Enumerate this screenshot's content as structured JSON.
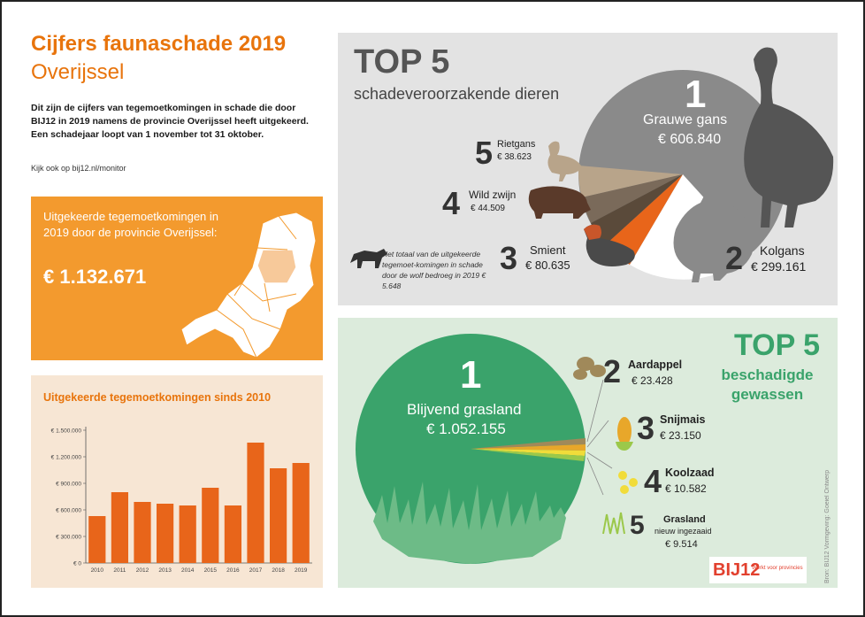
{
  "header": {
    "title": "Cijfers faunaschade 2019",
    "subtitle": "Overijssel",
    "intro": "Dit zijn de cijfers van tegemoetkomingen in schade die door BIJ12 in 2019 namens de provincie Overijssel heeft uitgekeerd. Een schadejaar loopt van 1 november tot 31 oktober.",
    "see_also": "Kijk ook op bij12.nl/monitor"
  },
  "province_box": {
    "label": "Uitgekeerde tegemoetkomingen in 2019 door de provincie Overijssel:",
    "amount": "€ 1.132.671"
  },
  "chart": {
    "title": "Uitgekeerde tegemoetkomingen sinds 2010"
  },
  "chart_data": {
    "type": "bar",
    "title": "Uitgekeerde tegemoetkomingen sinds 2010",
    "categories": [
      "2010",
      "2011",
      "2012",
      "2013",
      "2014",
      "2015",
      "2016",
      "2017",
      "2018",
      "2019"
    ],
    "values": [
      530000,
      800000,
      690000,
      670000,
      650000,
      850000,
      650000,
      1360000,
      1070000,
      1130000
    ],
    "ytick_labels": [
      "€ 0",
      "€ 300.000",
      "€ 600.000",
      "€ 900.000",
      "€ 1.200.000",
      "€ 1.500.000"
    ],
    "ylim": [
      0,
      1500000
    ],
    "color": "#e8651a",
    "grid": false
  },
  "animals": {
    "heading": "TOP 5",
    "subheading": "schadeveroorzakende dieren",
    "items": [
      {
        "rank": "1",
        "name": "Grauwe gans",
        "value": "€ 606.840"
      },
      {
        "rank": "2",
        "name": "Kolgans",
        "value": "€ 299.161"
      },
      {
        "rank": "3",
        "name": "Smient",
        "value": "€ 80.635"
      },
      {
        "rank": "4",
        "name": "Wild zwijn",
        "value": "€ 44.509"
      },
      {
        "rank": "5",
        "name": "Rietgans",
        "value": "€ 38.623"
      }
    ],
    "wolf_note": "Het totaal van de uitgekeerde tegemoet-komingen in schade door de wolf bedroeg in 2019 € 5.648",
    "colors": {
      "grauwe_gans": "#8a8a8a",
      "kolgans": "#ffffff",
      "smient": "#e8651a",
      "wild_zwijn": "#7a6a5a",
      "rietgans": "#b8a48a"
    }
  },
  "crops": {
    "heading": "TOP 5",
    "subheading": "beschadigde gewassen",
    "items": [
      {
        "rank": "1",
        "name": "Blijvend grasland",
        "value": "€ 1.052.155"
      },
      {
        "rank": "2",
        "name": "Aardappel",
        "value": "€ 23.428"
      },
      {
        "rank": "3",
        "name": "Snijmais",
        "value": "€ 23.150"
      },
      {
        "rank": "4",
        "name": "Koolzaad",
        "value": "€ 10.582"
      },
      {
        "rank": "5",
        "name": "Grasland",
        "sub": "nieuw ingezaaid",
        "value": "€ 9.514"
      }
    ],
    "colors": {
      "grasland": "#3aa36b",
      "aardappel": "#a0895a",
      "snijmais": "#e8a72a",
      "koolzaad": "#f1dc3a",
      "nieuw_grasland": "#9bc84a"
    }
  },
  "footer": {
    "logo": "BIJ12",
    "logo_tag": "Werkt voor provincies",
    "credit": "Bron: BIJ12   Vormgeving: Goeiel Ontwerp"
  }
}
